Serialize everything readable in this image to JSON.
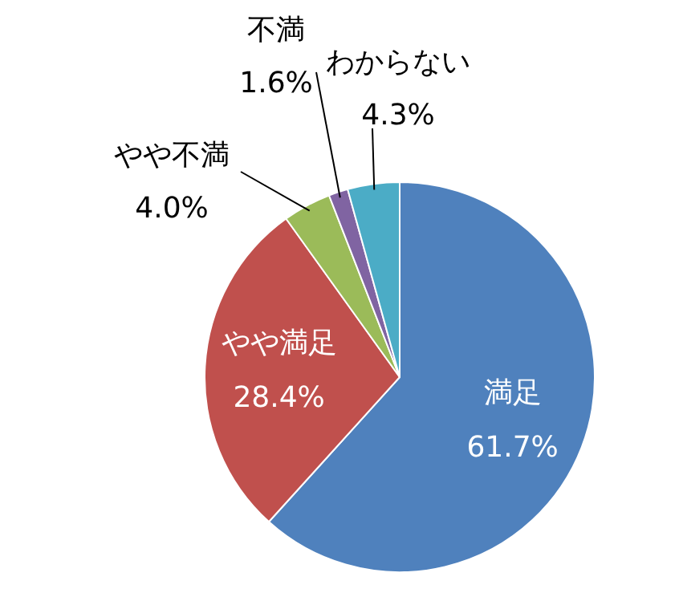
{
  "chart_data": {
    "type": "pie",
    "categories": [
      "満足",
      "やや満足",
      "やや不満",
      "不満",
      "わからない"
    ],
    "values": [
      61.7,
      28.4,
      4.0,
      1.6,
      4.3
    ],
    "value_labels": [
      "61.7%",
      "28.4%",
      "4.0%",
      "1.6%",
      "4.3%"
    ],
    "colors": [
      "#4f81bd",
      "#c0504d",
      "#9bbb59",
      "#8064a2",
      "#4bacc6"
    ],
    "legend": false
  }
}
